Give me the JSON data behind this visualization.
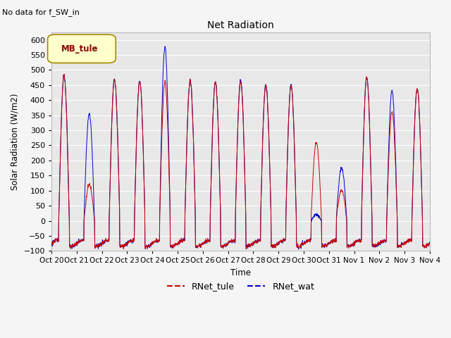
{
  "title": "Net Radiation",
  "subtitle": "No data for f_SW_in",
  "ylabel": "Solar Radiation (W/m2)",
  "xlabel": "Time",
  "ylim": [
    -100,
    625
  ],
  "yticks": [
    -100,
    -50,
    0,
    50,
    100,
    150,
    200,
    250,
    300,
    350,
    400,
    450,
    500,
    550,
    600
  ],
  "xtick_labels": [
    "Oct 20",
    "Oct 21",
    "Oct 22",
    "Oct 23",
    "Oct 24",
    "Oct 25",
    "Oct 26",
    "Oct 27",
    "Oct 28",
    "Oct 29",
    "Oct 30",
    "Oct 31",
    "Nov 1",
    "Nov 2",
    "Nov 3",
    "Nov 4"
  ],
  "line1_color": "#cc0000",
  "line2_color": "#0000cc",
  "line1_label": "RNet_tule",
  "line2_label": "RNet_wat",
  "legend_label": "MB_tule",
  "legend_bbox_facecolor": "#ffffcc",
  "legend_bbox_edgecolor": "#aa8800",
  "background_color": "#e8e8e8",
  "grid_color": "#ffffff",
  "figsize": [
    6.4,
    4.8
  ],
  "dpi": 100,
  "n_days": 15,
  "n_per_day": 96,
  "peaks_tule": [
    480,
    120,
    470,
    465,
    460,
    465,
    460,
    460,
    450,
    450,
    260,
    100,
    475,
    360,
    440
  ],
  "peaks_wat": [
    480,
    355,
    470,
    465,
    575,
    465,
    460,
    465,
    450,
    450,
    20,
    175,
    475,
    430,
    440
  ],
  "night_base": -75,
  "night_amp": 10
}
